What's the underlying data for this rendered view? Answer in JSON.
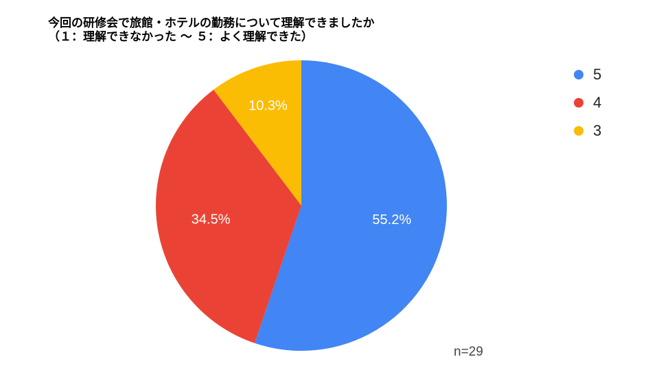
{
  "chart_data": {
    "type": "pie",
    "title_lines": [
      "今回の研修会で旅館・ホテルの勤務について理解できましたか",
      "（１：理解できなかった 〜 ５：よく理解できた）"
    ],
    "slices": [
      {
        "label": "5",
        "value": 55.2,
        "display": "55.2%",
        "color": "#4285F4"
      },
      {
        "label": "4",
        "value": 34.5,
        "display": "34.5%",
        "color": "#EA4335"
      },
      {
        "label": "3",
        "value": 10.3,
        "display": "10.3%",
        "color": "#FBBC04"
      }
    ],
    "legend_position": "right",
    "footnote": "n=29"
  }
}
